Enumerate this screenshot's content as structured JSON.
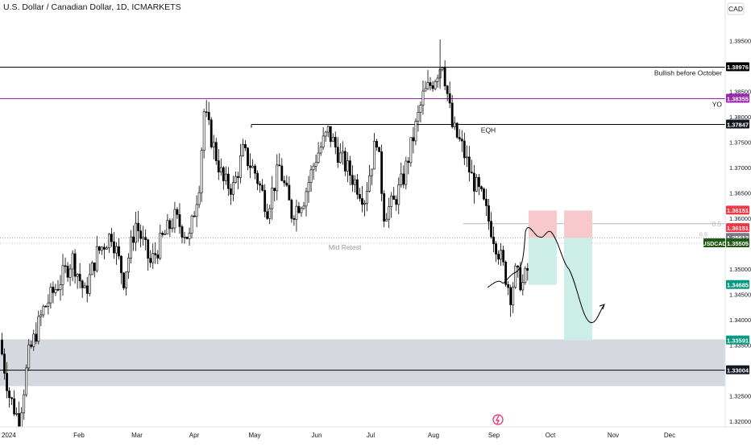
{
  "header": {
    "ticker_title": "U.S. Dollar / Canadian Dollar, 1D, ICMARKETS",
    "currency": "CAD"
  },
  "colors": {
    "candle": "#000000",
    "bull_fill": "#ffffff",
    "bear_fill": "#000000",
    "purple_line": "#9c27b0",
    "red_label": "#f23645",
    "green_label": "#089981",
    "grey_label": "#787b86",
    "dark_green_label": "#1e5a12",
    "zone": "#d1d4dc",
    "stop_zone": "#f7c9cd",
    "target_zone": "#cdeee6"
  },
  "chart_data": {
    "type": "candlestick",
    "title": "U.S. Dollar / Canadian Dollar, 1D, ICMARKETS",
    "symbol": "USDCAD",
    "timeframe": "1D",
    "ylim": [
      1.3195,
      1.3995
    ],
    "y_ticks": [
      1.32,
      1.325,
      1.335,
      1.34,
      1.345,
      1.35,
      1.36,
      1.365,
      1.37,
      1.375,
      1.38,
      1.385,
      1.395
    ],
    "y_tick_labels": [
      "1.32000",
      "1.32500",
      "1.33500",
      "1.34000",
      "1.34500",
      "1.35000",
      "1.36000",
      "1.36500",
      "1.37000",
      "1.37500",
      "1.38000",
      "1.38500",
      "1.39500"
    ],
    "x_labels": [
      {
        "label": "2024",
        "month_index": 0
      },
      {
        "label": "Feb",
        "month_index": 1
      },
      {
        "label": "Mar",
        "month_index": 2
      },
      {
        "label": "Apr",
        "month_index": 3
      },
      {
        "label": "May",
        "month_index": 4
      },
      {
        "label": "Jun",
        "month_index": 5
      },
      {
        "label": "Jul",
        "month_index": 6
      },
      {
        "label": "Aug",
        "month_index": 7
      },
      {
        "label": "Sep",
        "month_index": 8
      },
      {
        "label": "Oct",
        "month_index": 9
      },
      {
        "label": "Nov",
        "month_index": 10
      },
      {
        "label": "Dec",
        "month_index": 11
      }
    ],
    "path_anchors": [
      [
        0,
        1.336
      ],
      [
        4,
        1.325
      ],
      [
        8,
        1.32
      ],
      [
        12,
        1.333
      ],
      [
        18,
        1.342
      ],
      [
        24,
        1.347
      ],
      [
        30,
        1.352
      ],
      [
        35,
        1.345
      ],
      [
        40,
        1.353
      ],
      [
        46,
        1.357
      ],
      [
        51,
        1.348
      ],
      [
        56,
        1.359
      ],
      [
        62,
        1.351
      ],
      [
        67,
        1.356
      ],
      [
        72,
        1.36
      ],
      [
        78,
        1.356
      ],
      [
        82,
        1.367
      ],
      [
        84,
        1.381
      ],
      [
        88,
        1.374
      ],
      [
        92,
        1.367
      ],
      [
        96,
        1.366
      ],
      [
        100,
        1.373
      ],
      [
        105,
        1.369
      ],
      [
        110,
        1.362
      ],
      [
        115,
        1.37
      ],
      [
        120,
        1.361
      ],
      [
        125,
        1.364
      ],
      [
        130,
        1.372
      ],
      [
        135,
        1.377
      ],
      [
        140,
        1.372
      ],
      [
        145,
        1.368
      ],
      [
        150,
        1.364
      ],
      [
        155,
        1.376
      ],
      [
        158,
        1.361
      ],
      [
        162,
        1.363
      ],
      [
        166,
        1.368
      ],
      [
        170,
        1.376
      ],
      [
        174,
        1.384
      ],
      [
        178,
        1.387
      ],
      [
        182,
        1.391
      ],
      [
        186,
        1.378
      ],
      [
        190,
        1.374
      ],
      [
        194,
        1.368
      ],
      [
        198,
        1.364
      ],
      [
        202,
        1.358
      ],
      [
        206,
        1.352
      ],
      [
        210,
        1.345
      ],
      [
        212,
        1.349
      ],
      [
        215,
        1.347
      ],
      [
        218,
        1.351
      ],
      [
        220,
        1.352
      ]
    ],
    "candle_count": 221,
    "last_close": 1.35505,
    "levels": [
      {
        "name": "bullish-before-october",
        "value": 1.38976,
        "label": "Bullish before October",
        "price_label": "1.38976",
        "color": "#000000"
      },
      {
        "name": "yo",
        "value": 1.38355,
        "label": "YO",
        "price_label": "1.38355",
        "color": "#9c27b0"
      },
      {
        "name": "eqh",
        "value": 1.37847,
        "label": "EQH",
        "price_label": "1.37847",
        "color": "#000000"
      },
      {
        "name": "fib-half",
        "value": 1.35612,
        "label": "0.5",
        "price_label": "1.35612",
        "color": "#787b86"
      },
      {
        "name": "key-level",
        "value": 1.33004,
        "label": "",
        "price_label": "1.33004",
        "color": "#000000"
      }
    ],
    "price_tags": [
      {
        "value": 1.36151,
        "label": "1.36151",
        "color": "#f23645"
      },
      {
        "value": 1.35805,
        "label": "1.36151",
        "color": "#f23645"
      },
      {
        "value": 1.35612,
        "label": "1.35612",
        "color": "#787b86"
      },
      {
        "value": 1.35505,
        "label": "1.35505",
        "color": "#1e5a12",
        "symbol": "USDCAD"
      },
      {
        "value": 1.34685,
        "label": "1.34685",
        "color": "#089981"
      },
      {
        "value": 1.33591,
        "label": "1.33591",
        "color": "#089981"
      }
    ],
    "annotations": {
      "mid_retest": "Mid Retest",
      "zone": [
        1.3269,
        1.3361
      ],
      "stop_boxes_top": 1.36151,
      "entry": 1.35612,
      "target_1": 1.34685,
      "target_2": 1.33591
    }
  }
}
